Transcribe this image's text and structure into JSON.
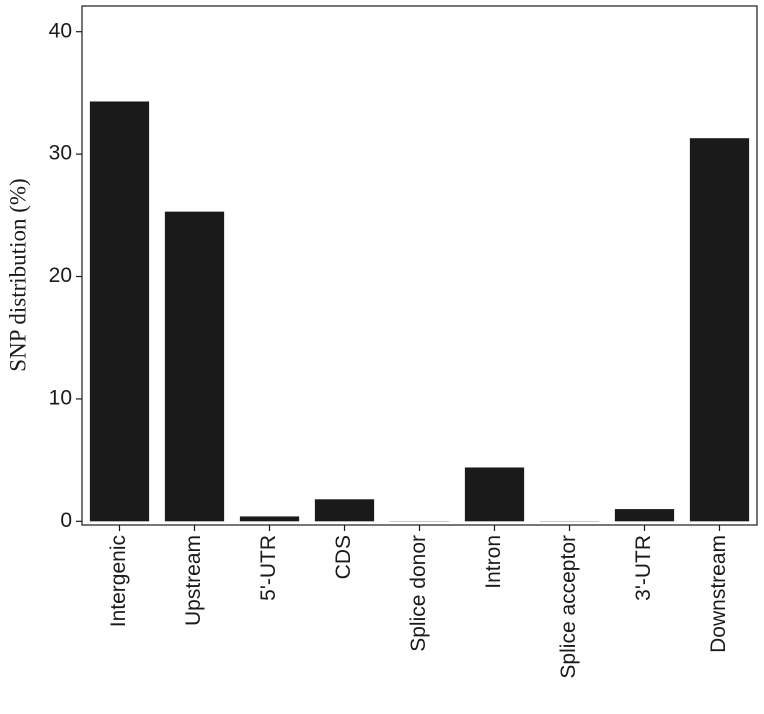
{
  "chart_data": {
    "type": "bar",
    "y_label": "SNP distribution (%)",
    "categories": [
      "Intergenic",
      "Upstream",
      "5'-UTR",
      "CDS",
      "Splice donor",
      "Intron",
      "Splice acceptor",
      "3'-UTR",
      "Downstream"
    ],
    "values": [
      34.3,
      25.3,
      0.4,
      1.8,
      0.02,
      4.4,
      0.02,
      1.0,
      31.3
    ],
    "color": "#1a1a1a",
    "ylim": [
      -0.3,
      42.1
    ],
    "yticks": [
      0,
      10,
      20,
      30,
      40
    ],
    "grid": false
  }
}
